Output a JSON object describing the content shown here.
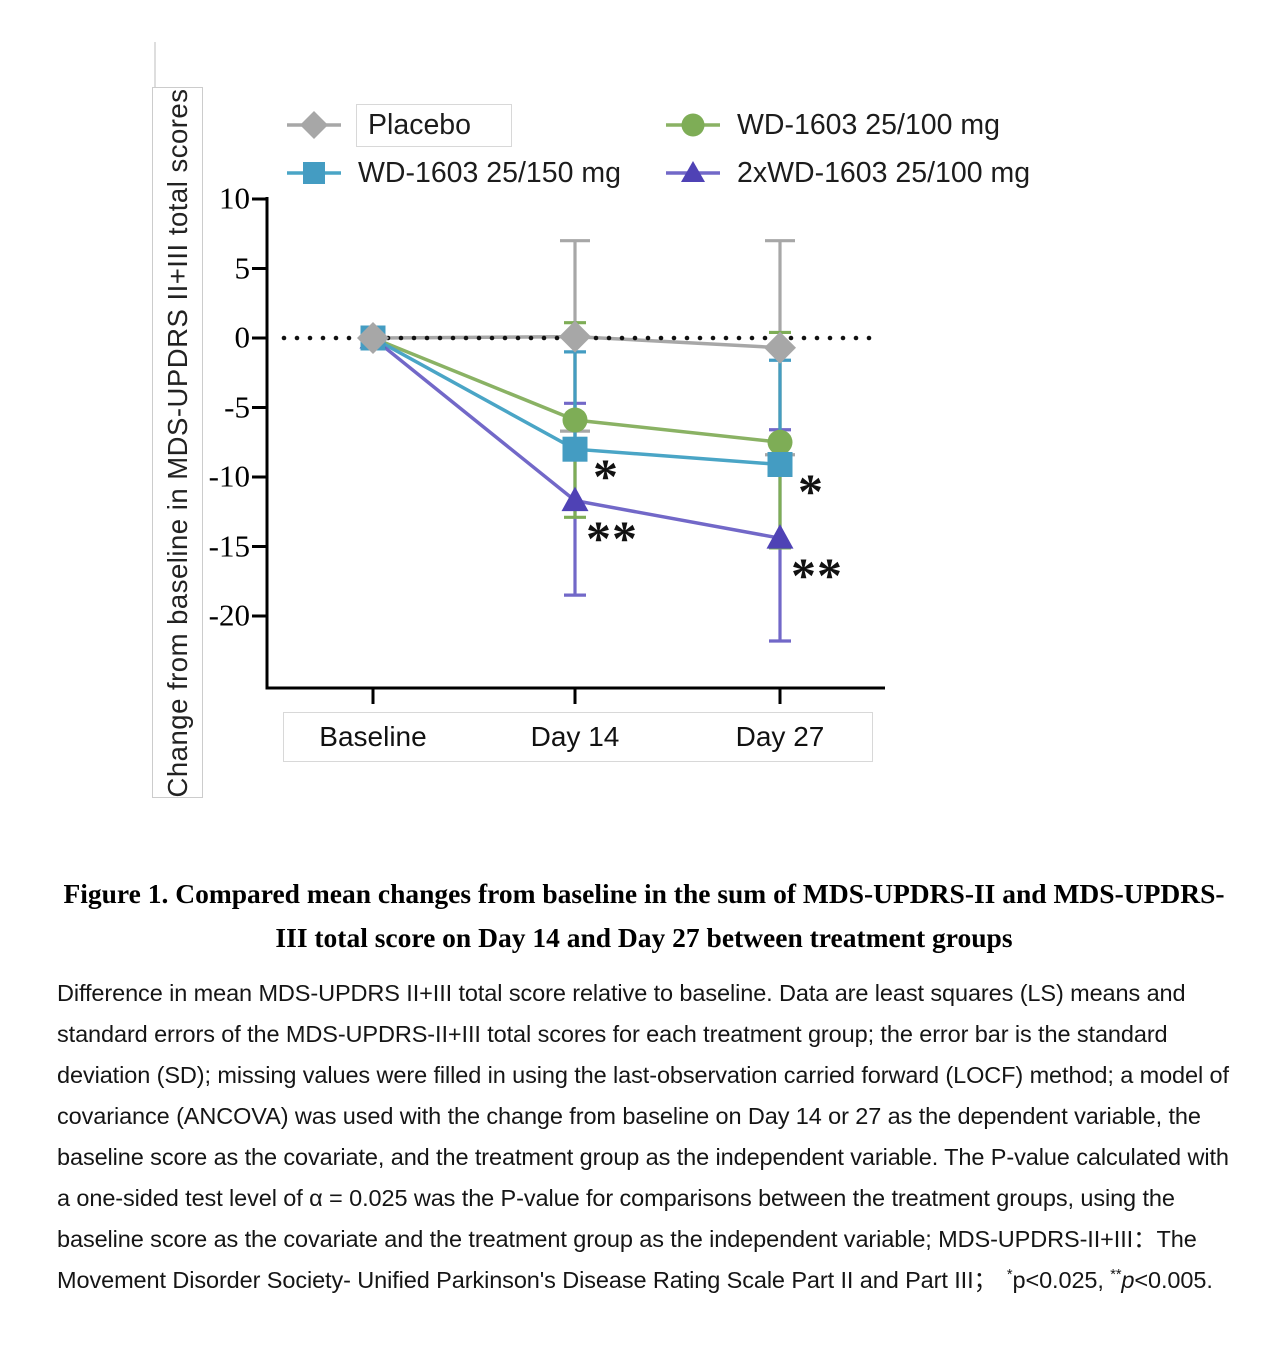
{
  "chart_data": {
    "type": "line",
    "x_categories": [
      "Baseline",
      "Day 14",
      "Day 27"
    ],
    "ylabel": "Change from baseline in MDS-UPDRS II+III total scores",
    "ylim": [
      -25.5,
      10
    ],
    "yticks": [
      10,
      5,
      0,
      -5,
      -10,
      -15,
      -20
    ],
    "zero_reference_line": "dotted",
    "legend_position": "top",
    "grid": false,
    "series": [
      {
        "name": "Placebo",
        "marker": "diamond",
        "color": "#a7a7a7",
        "line_color": "#a7a7a7",
        "values": [
          0,
          0.1,
          -0.7
        ],
        "err_high": [
          null,
          7.0,
          7.0
        ],
        "err_low": [
          null,
          -6.7,
          -8.4
        ]
      },
      {
        "name": "WD-1603 25/100 mg",
        "marker": "circle",
        "color": "#7ead56",
        "line_color": "#8ab264",
        "values": [
          0,
          -5.9,
          -7.5
        ],
        "err_high": [
          null,
          1.1,
          0.4
        ],
        "err_low": [
          null,
          -12.9,
          -15.1
        ]
      },
      {
        "name": "WD-1603 25/150 mg",
        "marker": "square",
        "color": "#449cc2",
        "line_color": "#4aa5c6",
        "values": [
          0,
          -8.0,
          -9.1
        ],
        "err_high": [
          null,
          -1.0,
          -1.6
        ],
        "err_low": [
          null,
          null,
          null
        ]
      },
      {
        "name": "2xWD-1603 25/100 mg",
        "marker": "triangle",
        "color": "#4f42b5",
        "line_color": "#7268c8",
        "values": [
          0,
          -11.7,
          -14.4
        ],
        "err_high": [
          null,
          -4.7,
          -6.6
        ],
        "err_low": [
          null,
          -18.5,
          -21.8
        ]
      }
    ],
    "legend_order": [
      0,
      1,
      2,
      3
    ],
    "significance": [
      {
        "label": "*",
        "x": "Day 14",
        "series": "WD-1603 25/150 mg"
      },
      {
        "label": "**",
        "x": "Day 14",
        "series": "2xWD-1603 25/100 mg"
      },
      {
        "label": "*",
        "x": "Day 27",
        "series": "WD-1603 25/150 mg"
      },
      {
        "label": "**",
        "x": "Day 27",
        "series": "2xWD-1603 25/100 mg"
      }
    ]
  },
  "caption": {
    "title_line1": "Figure 1. Compared mean changes from baseline in the sum of MDS-UPDRS-II and MDS-UPDRS-",
    "title_line2": "III total score on Day 14 and Day 27 between treatment groups",
    "body": "Difference in mean MDS-UPDRS II+III total score relative to baseline. Data are least squares (LS) means and standard errors of the MDS-UPDRS-II+III total scores for each treatment group; the error bar is the standard deviation (SD); missing values were filled in using the last-observation carried forward (LOCF) method; a model of covariance (ANCOVA) was used with the change from baseline on Day 14 or 27 as the dependent variable, the baseline score as the covariate, and the treatment group as the independent variable. The P-value calculated with a one-sided test level of α = 0.025 was the P-value for comparisons between the treatment groups, using the baseline score as the covariate and the treatment group as the independent variable; MDS-UPDRS-II+III：The Movement Disorder Society- Unified Parkinson's Disease Rating Scale Part II and Part III；",
    "sig1_sup": "*",
    "sig1_text": "p<0.025,",
    "sig2_sup": "**",
    "sig2_p": "p",
    "sig2_rest": "<0.005."
  }
}
